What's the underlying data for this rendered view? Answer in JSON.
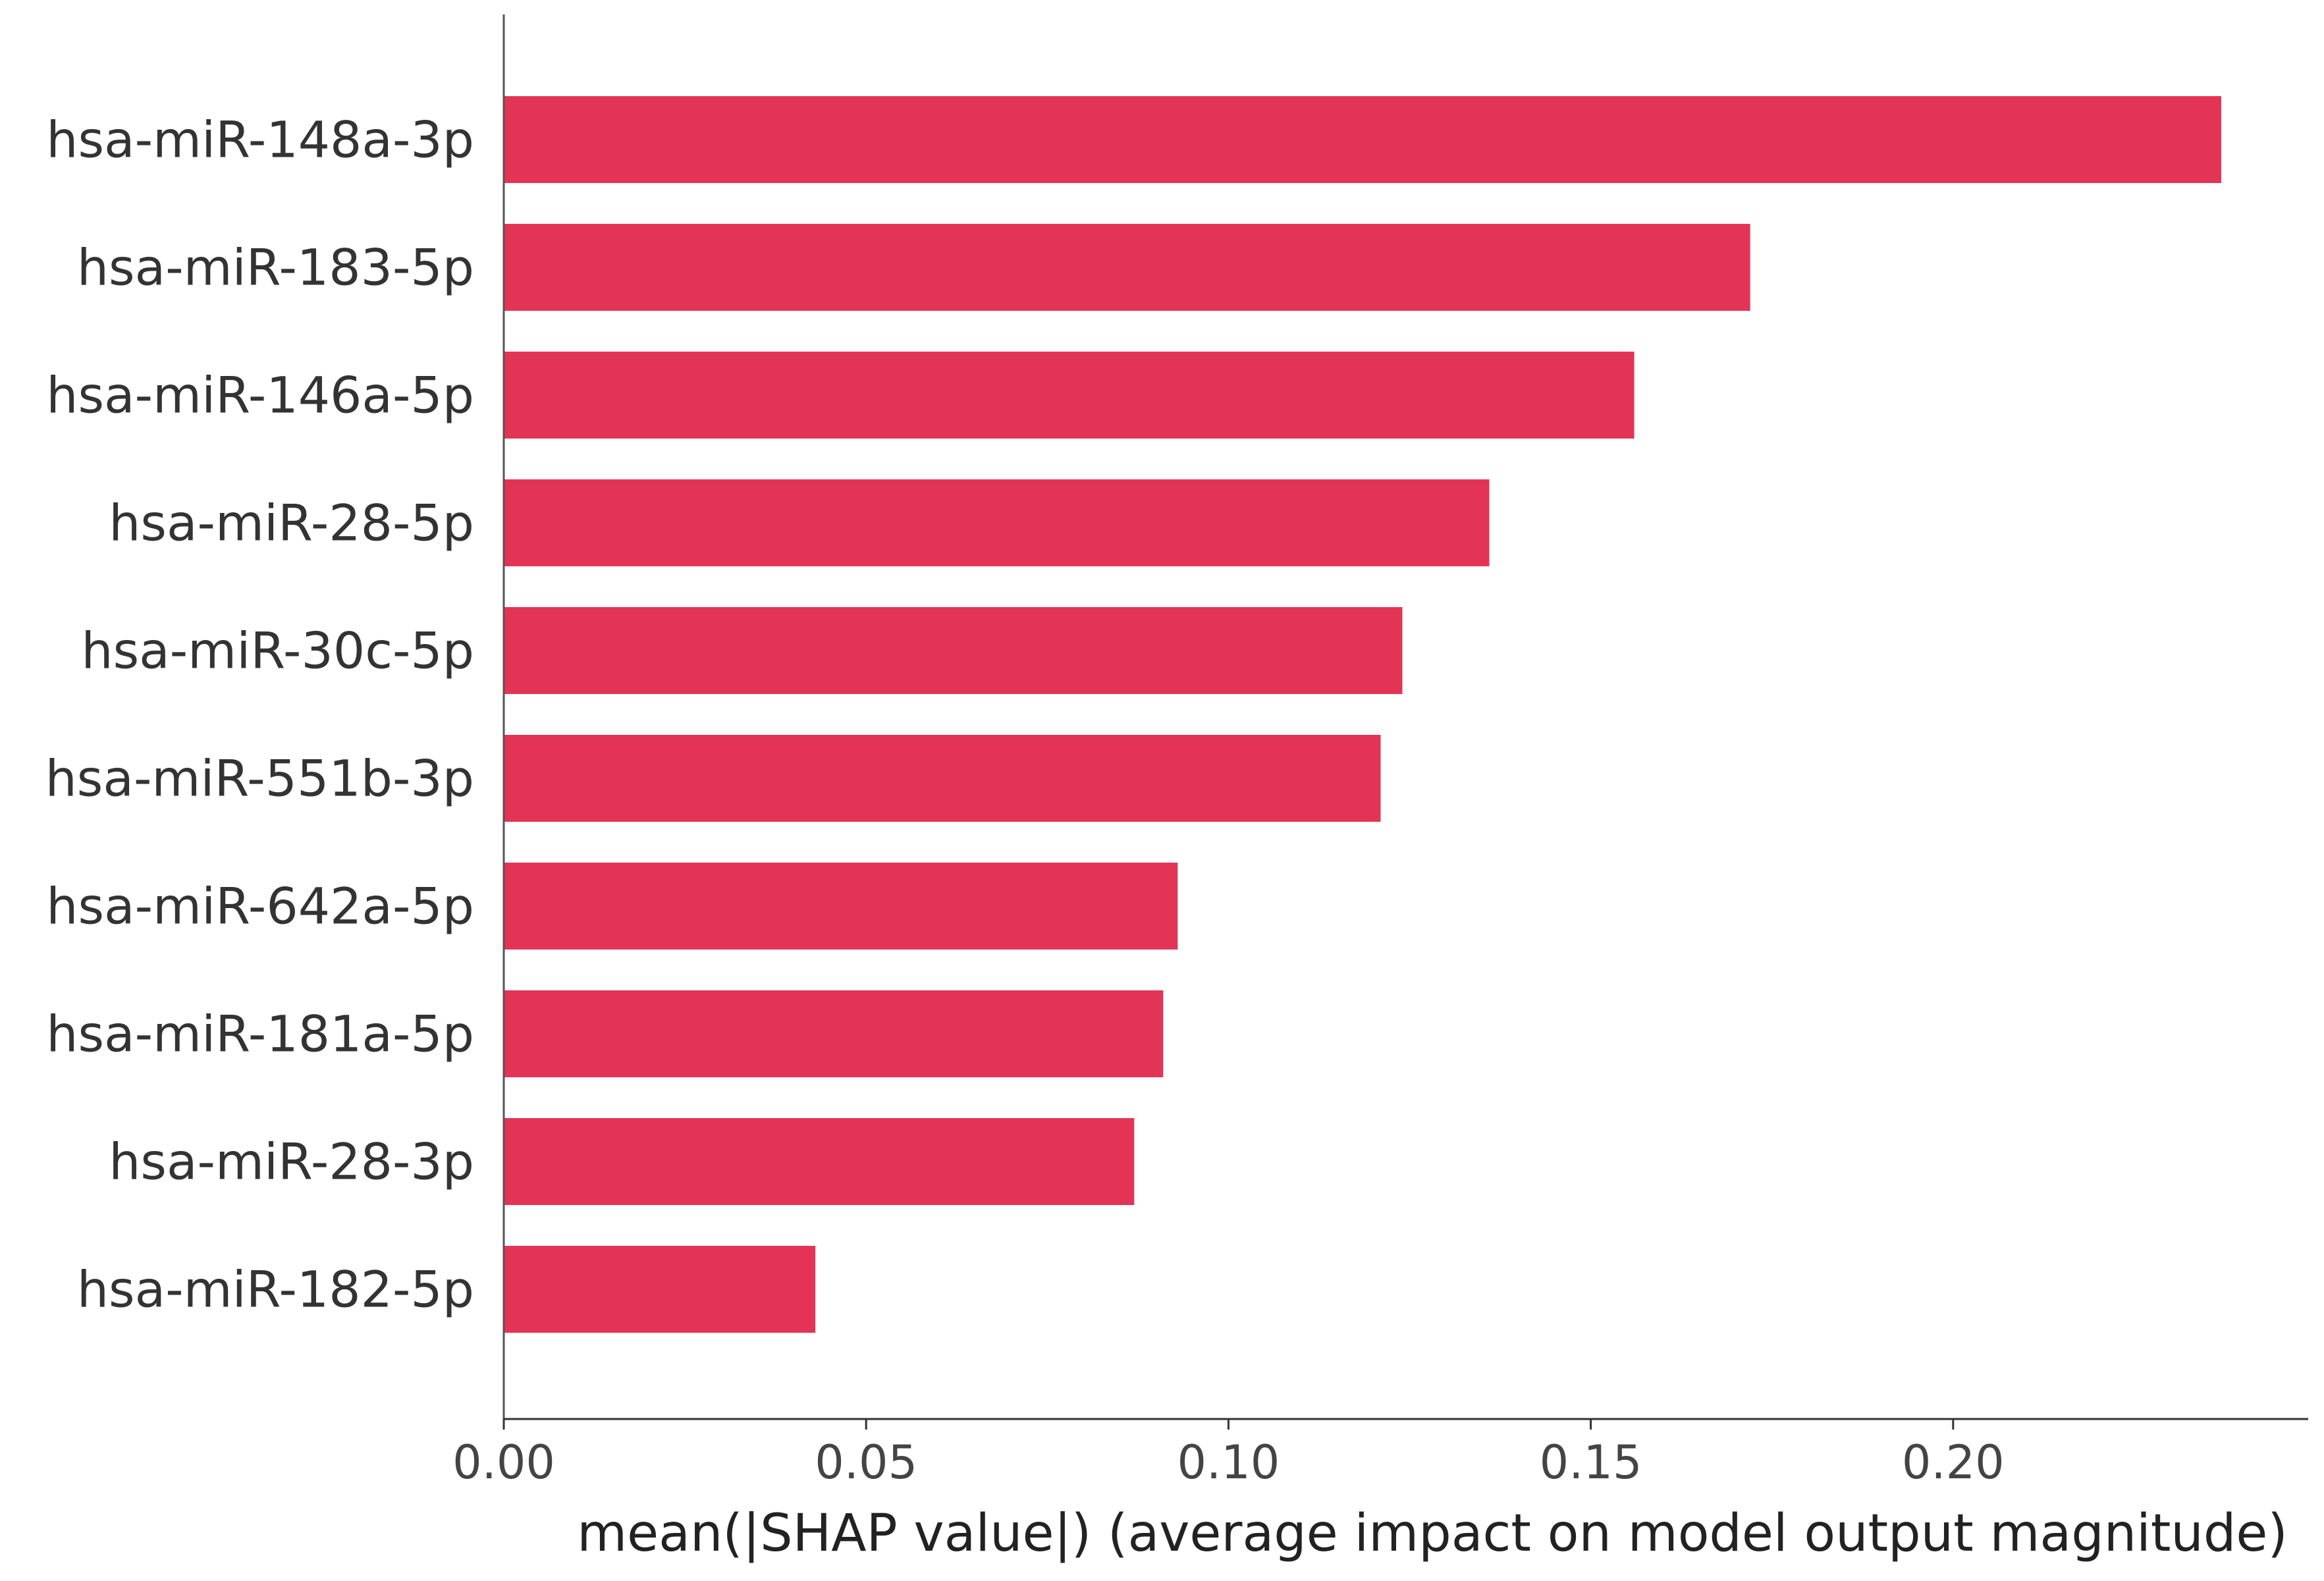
{
  "chart_data": {
    "type": "bar",
    "orientation": "horizontal",
    "title": "",
    "xlabel": "mean(|SHAP value|) (average impact on model output magnitude)",
    "ylabel": "",
    "categories": [
      "hsa-miR-148a-3p",
      "hsa-miR-183-5p",
      "hsa-miR-146a-5p",
      "hsa-miR-28-5p",
      "hsa-miR-30c-5p",
      "hsa-miR-551b-3p",
      "hsa-miR-642a-5p",
      "hsa-miR-181a-5p",
      "hsa-miR-28-3p",
      "hsa-miR-182-5p"
    ],
    "values": [
      0.237,
      0.172,
      0.156,
      0.136,
      0.124,
      0.121,
      0.093,
      0.091,
      0.087,
      0.043
    ],
    "xlim": [
      0.0,
      0.249
    ],
    "xticks": [
      0.0,
      0.05,
      0.1,
      0.15,
      0.2
    ],
    "xtick_labels": [
      "0.00",
      "0.05",
      "0.10",
      "0.15",
      "0.20"
    ],
    "grid": false,
    "bar_color": "#e33456"
  }
}
